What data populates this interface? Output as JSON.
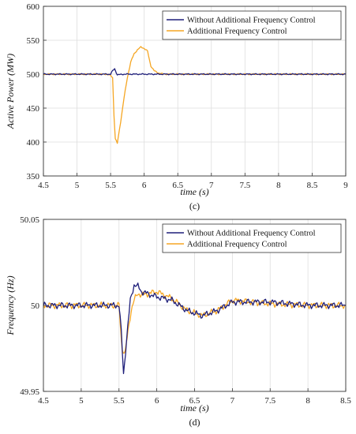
{
  "chart_data": [
    {
      "type": "line",
      "caption": "(c)",
      "xlabel": "time (s)",
      "ylabel": "Active Power (MW)",
      "xlim": [
        4.5,
        9
      ],
      "ylim": [
        350,
        600
      ],
      "xticks": [
        "4.5",
        "5",
        "5.5",
        "6",
        "6.5",
        "7",
        "7.5",
        "8",
        "8.5",
        "9"
      ],
      "yticks": [
        "350",
        "400",
        "450",
        "500",
        "550",
        "600"
      ],
      "grid": true,
      "legend_position": "top-right",
      "colors": [
        "#1f1f7a",
        "#f5a623"
      ],
      "series": [
        {
          "name": "Without Additional Frequency Control",
          "x": [
            4.5,
            5.5,
            5.53,
            5.56,
            5.6,
            5.7,
            6.2,
            9
          ],
          "y": [
            500,
            500,
            505,
            508,
            499,
            500,
            500,
            500
          ]
        },
        {
          "name": "Additional Frequency Control",
          "x": [
            4.5,
            5.45,
            5.5,
            5.53,
            5.55,
            5.57,
            5.6,
            5.65,
            5.7,
            5.75,
            5.8,
            5.85,
            5.9,
            5.95,
            6.0,
            6.05,
            6.08,
            6.1,
            6.15,
            6.2,
            6.3,
            9
          ],
          "y": [
            500,
            500,
            498,
            495,
            440,
            405,
            398,
            430,
            465,
            495,
            518,
            530,
            536,
            540,
            538,
            534,
            520,
            512,
            505,
            502,
            500,
            500
          ]
        }
      ]
    },
    {
      "type": "line",
      "caption": "(d)",
      "xlabel": "time (s)",
      "ylabel": "Frequency (Hz)",
      "xlim": [
        4.5,
        8.5
      ],
      "ylim": [
        49.95,
        50.05
      ],
      "xticks": [
        "4.5",
        "5",
        "5.5",
        "6",
        "6.5",
        "7",
        "7.5",
        "8",
        "8.5"
      ],
      "yticks": [
        "49.95",
        "50",
        "50.05"
      ],
      "grid": true,
      "legend_position": "top-right",
      "colors": [
        "#1f1f7a",
        "#f5a623"
      ],
      "series": [
        {
          "name": "Without Additional Frequency Control",
          "x": [
            4.5,
            5.4,
            5.5,
            5.53,
            5.56,
            5.6,
            5.65,
            5.7,
            5.75,
            5.8,
            6.0,
            6.2,
            6.4,
            6.6,
            6.8,
            7.0,
            7.5,
            8.0,
            8.5
          ],
          "y": [
            50.0,
            50.0,
            50.0,
            49.985,
            49.96,
            49.98,
            50.003,
            50.012,
            50.011,
            50.008,
            50.005,
            50.003,
            49.997,
            49.994,
            49.997,
            50.002,
            50.002,
            50.0,
            50.0
          ]
        },
        {
          "name": "Additional Frequency Control",
          "x": [
            4.5,
            5.4,
            5.5,
            5.54,
            5.58,
            5.62,
            5.66,
            5.7,
            5.75,
            5.8,
            6.0,
            6.2,
            6.4,
            6.6,
            6.8,
            7.0,
            7.5,
            8.0,
            8.5
          ],
          "y": [
            50.0,
            50.0,
            50.0,
            49.975,
            49.972,
            49.985,
            49.997,
            50.003,
            50.007,
            50.006,
            50.008,
            50.004,
            49.997,
            49.994,
            49.997,
            50.003,
            50.001,
            50.0,
            50.0
          ]
        }
      ]
    }
  ]
}
